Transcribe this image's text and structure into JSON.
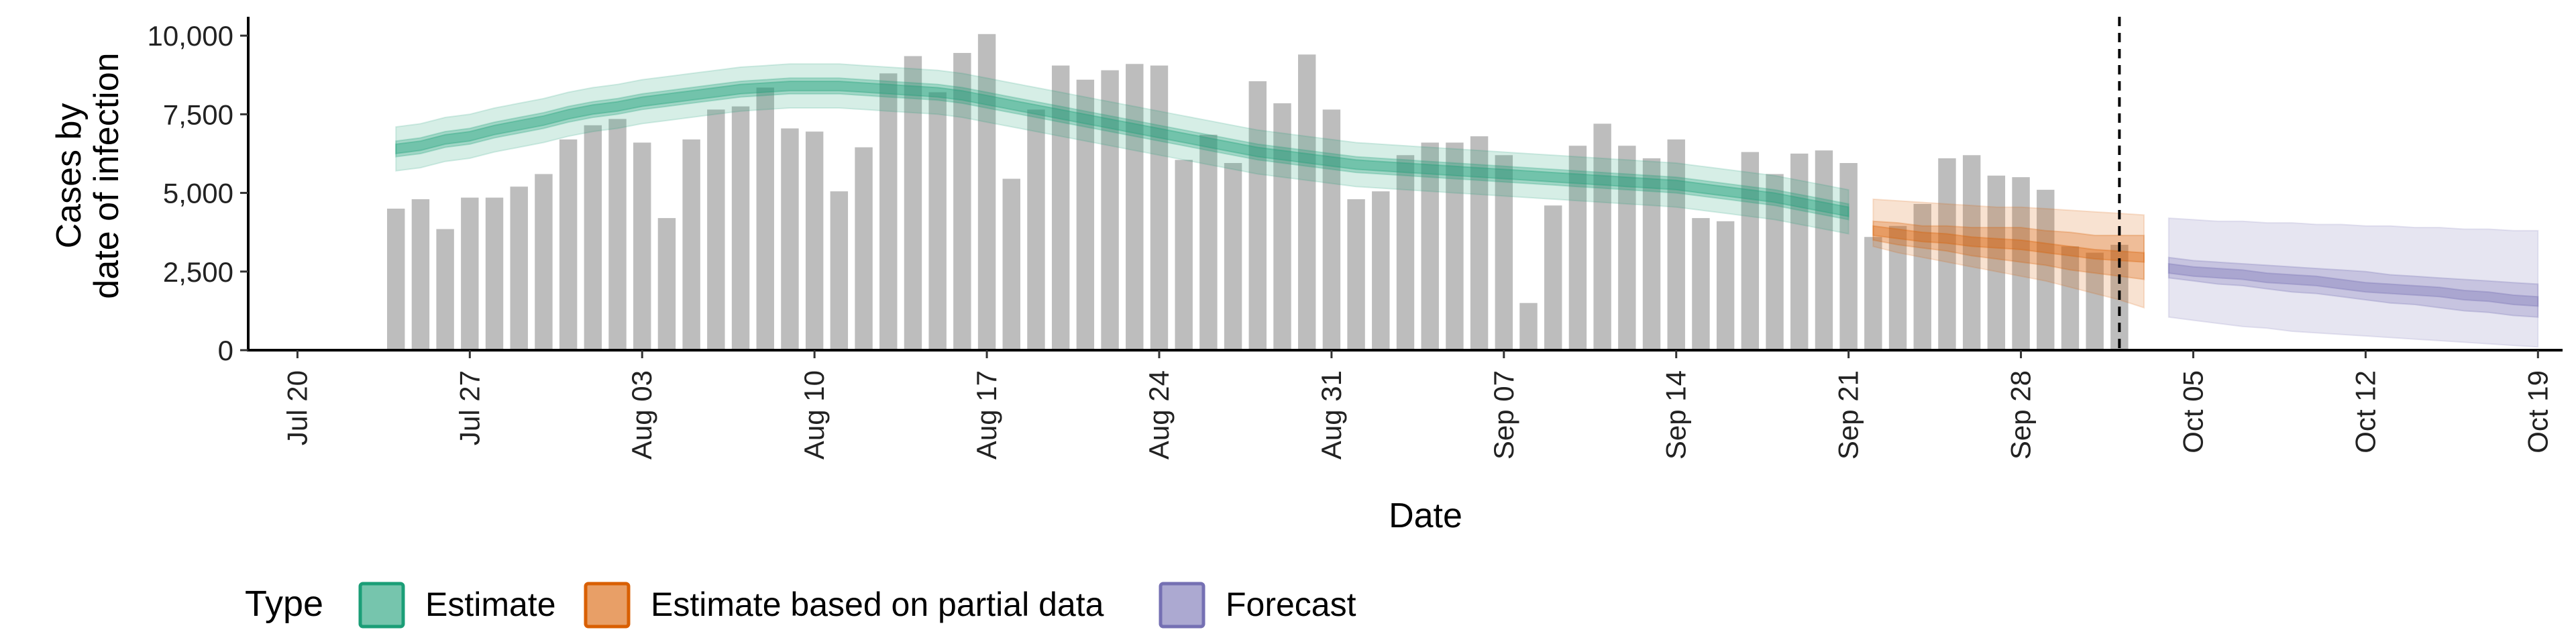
{
  "chart_data": {
    "type": "bar",
    "xlabel": "Date",
    "ylabel_lines": [
      "Cases by",
      "date of infection"
    ],
    "ylim": [
      0,
      10600
    ],
    "xlim": [
      "2020-07-18",
      "2020-10-20"
    ],
    "y_ticks": [
      {
        "value": 0,
        "label": "0"
      },
      {
        "value": 2500,
        "label": "2,500"
      },
      {
        "value": 5000,
        "label": "5,000"
      },
      {
        "value": 7500,
        "label": "7,500"
      },
      {
        "value": 10000,
        "label": "10,000"
      }
    ],
    "x_ticks": [
      {
        "date": "2020-07-20",
        "label": "Jul 20"
      },
      {
        "date": "2020-07-27",
        "label": "Jul 27"
      },
      {
        "date": "2020-08-03",
        "label": "Aug 03"
      },
      {
        "date": "2020-08-10",
        "label": "Aug 10"
      },
      {
        "date": "2020-08-17",
        "label": "Aug 17"
      },
      {
        "date": "2020-08-24",
        "label": "Aug 24"
      },
      {
        "date": "2020-08-31",
        "label": "Aug 31"
      },
      {
        "date": "2020-09-07",
        "label": "Sep 07"
      },
      {
        "date": "2020-09-14",
        "label": "Sep 14"
      },
      {
        "date": "2020-09-21",
        "label": "Sep 21"
      },
      {
        "date": "2020-09-28",
        "label": "Sep 28"
      },
      {
        "date": "2020-10-05",
        "label": "Oct 05"
      },
      {
        "date": "2020-10-12",
        "label": "Oct 12"
      },
      {
        "date": "2020-10-19",
        "label": "Oct 19"
      }
    ],
    "bars": {
      "start_date": "2020-07-24",
      "color": "#bdbdbd",
      "values": [
        4500,
        4800,
        3850,
        4850,
        4850,
        5200,
        5600,
        6700,
        7150,
        7350,
        6600,
        4200,
        6700,
        7650,
        7750,
        8350,
        7050,
        6950,
        5050,
        6450,
        8800,
        9350,
        8200,
        9450,
        10050,
        5450,
        7650,
        9050,
        8600,
        8900,
        9100,
        9050,
        6050,
        6850,
        5950,
        8550,
        7850,
        9400,
        7650,
        4800,
        5050,
        6200,
        6600,
        6600,
        6800,
        6200,
        1500,
        4600,
        6500,
        7200,
        6500,
        6100,
        6700,
        4200,
        4100,
        6300,
        5600,
        6250,
        6350,
        5950,
        3600,
        3950,
        4650,
        6100,
        6200,
        5550,
        5500,
        5100,
        3300,
        3100,
        3350
      ]
    },
    "series": [
      {
        "name": "Estimate",
        "color": "#1b9e77",
        "start_date": "2020-07-24",
        "median": [
          6400,
          6500,
          6700,
          6800,
          7000,
          7150,
          7300,
          7500,
          7650,
          7750,
          7900,
          8000,
          8100,
          8200,
          8300,
          8350,
          8400,
          8400,
          8400,
          8350,
          8300,
          8250,
          8200,
          8100,
          7950,
          7800,
          7650,
          7500,
          7350,
          7200,
          7050,
          6900,
          6750,
          6600,
          6450,
          6300,
          6200,
          6100,
          6000,
          5900,
          5850,
          5800,
          5750,
          5700,
          5650,
          5600,
          5550,
          5500,
          5450,
          5400,
          5350,
          5300,
          5250,
          5150,
          5050,
          4950,
          4850,
          4700,
          4550,
          4400
        ],
        "inner_low": [
          6150,
          6250,
          6450,
          6550,
          6750,
          6900,
          7050,
          7250,
          7400,
          7500,
          7650,
          7750,
          7850,
          7950,
          8050,
          8100,
          8150,
          8150,
          8150,
          8100,
          8050,
          8000,
          7950,
          7850,
          7700,
          7550,
          7400,
          7250,
          7100,
          6950,
          6800,
          6650,
          6500,
          6350,
          6200,
          6050,
          5950,
          5850,
          5750,
          5650,
          5600,
          5550,
          5500,
          5450,
          5400,
          5350,
          5300,
          5250,
          5200,
          5150,
          5100,
          5050,
          5000,
          4900,
          4800,
          4700,
          4600,
          4450,
          4300,
          4150
        ],
        "inner_high": [
          6650,
          6750,
          6950,
          7050,
          7250,
          7400,
          7550,
          7750,
          7900,
          8000,
          8150,
          8250,
          8350,
          8450,
          8550,
          8600,
          8650,
          8650,
          8650,
          8600,
          8550,
          8500,
          8450,
          8350,
          8200,
          8050,
          7900,
          7750,
          7600,
          7450,
          7300,
          7150,
          7000,
          6850,
          6700,
          6550,
          6450,
          6350,
          6250,
          6150,
          6100,
          6050,
          6000,
          5950,
          5900,
          5850,
          5800,
          5750,
          5700,
          5650,
          5600,
          5550,
          5500,
          5400,
          5300,
          5200,
          5100,
          4950,
          4800,
          4650
        ],
        "outer_low": [
          5700,
          5800,
          6000,
          6100,
          6300,
          6450,
          6600,
          6800,
          6950,
          7050,
          7200,
          7300,
          7400,
          7500,
          7600,
          7650,
          7700,
          7700,
          7700,
          7650,
          7600,
          7550,
          7500,
          7400,
          7250,
          7100,
          6950,
          6800,
          6650,
          6500,
          6350,
          6200,
          6050,
          5900,
          5750,
          5600,
          5500,
          5400,
          5300,
          5200,
          5150,
          5100,
          5050,
          5000,
          4950,
          4900,
          4850,
          4800,
          4750,
          4700,
          4650,
          4600,
          4550,
          4450,
          4350,
          4250,
          4150,
          4000,
          3850,
          3700
        ],
        "outer_high": [
          7100,
          7200,
          7400,
          7500,
          7700,
          7850,
          8000,
          8200,
          8350,
          8450,
          8600,
          8700,
          8800,
          8900,
          9000,
          9050,
          9100,
          9100,
          9100,
          9050,
          9000,
          8950,
          8900,
          8800,
          8650,
          8500,
          8350,
          8200,
          8050,
          7900,
          7750,
          7600,
          7450,
          7300,
          7150,
          7000,
          6900,
          6800,
          6700,
          6600,
          6550,
          6500,
          6450,
          6400,
          6350,
          6300,
          6250,
          6200,
          6150,
          6100,
          6050,
          6000,
          5950,
          5850,
          5750,
          5650,
          5550,
          5400,
          5250,
          5100
        ]
      },
      {
        "name": "Estimate based on partial data",
        "color": "#d95f02",
        "start_date": "2020-09-22",
        "median": [
          3800,
          3700,
          3600,
          3550,
          3450,
          3400,
          3350,
          3250,
          3150,
          3050,
          3000,
          2950
        ],
        "inner_low": [
          3500,
          3350,
          3250,
          3150,
          3000,
          2900,
          2800,
          2700,
          2550,
          2450,
          2350,
          2250
        ],
        "inner_high": [
          4100,
          4050,
          3950,
          3950,
          3900,
          3900,
          3900,
          3800,
          3750,
          3650,
          3650,
          3650
        ],
        "outer_low": [
          3300,
          3100,
          2950,
          2800,
          2650,
          2500,
          2350,
          2200,
          2000,
          1800,
          1600,
          1350
        ],
        "outer_high": [
          4800,
          4750,
          4700,
          4650,
          4600,
          4550,
          4550,
          4500,
          4450,
          4400,
          4350,
          4300
        ]
      },
      {
        "name": "Forecast",
        "color": "#7570b3",
        "start_date": "2020-10-04",
        "median": [
          2600,
          2500,
          2450,
          2400,
          2300,
          2250,
          2200,
          2100,
          2000,
          1950,
          1900,
          1850,
          1750,
          1700,
          1600,
          1550
        ],
        "inner_low": [
          2300,
          2200,
          2100,
          2050,
          1950,
          1850,
          1800,
          1700,
          1600,
          1500,
          1450,
          1350,
          1250,
          1200,
          1100,
          1050
        ],
        "inner_high": [
          2950,
          2850,
          2800,
          2750,
          2700,
          2650,
          2600,
          2550,
          2500,
          2400,
          2350,
          2300,
          2250,
          2200,
          2150,
          2100
        ],
        "outer_low": [
          1050,
          950,
          850,
          750,
          700,
          600,
          550,
          500,
          450,
          400,
          350,
          300,
          250,
          200,
          150,
          100
        ],
        "outer_high": [
          4200,
          4150,
          4100,
          4100,
          4050,
          4050,
          4000,
          4000,
          3950,
          3950,
          3900,
          3900,
          3850,
          3850,
          3800,
          3800
        ]
      }
    ],
    "vline_date": "2020-10-02",
    "legend": {
      "position": "bottom",
      "title": "Type",
      "items": [
        {
          "label": "Estimate",
          "color": "#1b9e77"
        },
        {
          "label": "Estimate based on partial data",
          "color": "#d95f02"
        },
        {
          "label": "Forecast",
          "color": "#7570b3"
        }
      ]
    }
  }
}
